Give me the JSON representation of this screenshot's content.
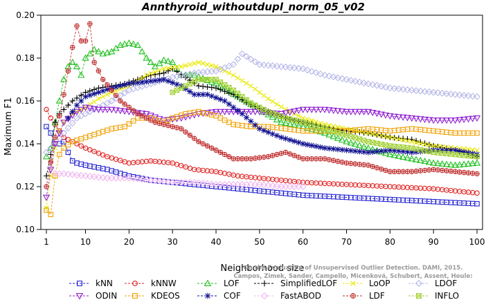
{
  "chart_data": {
    "type": "line",
    "title": "Annthyroid_withoutdupl_norm_05_v02",
    "xlabel": "Neighborhood size",
    "ylabel": "Maximum F1",
    "xlim": [
      1,
      100
    ],
    "ylim": [
      0.1,
      0.2
    ],
    "x_ticks": [
      1,
      10,
      20,
      30,
      40,
      50,
      60,
      70,
      80,
      90,
      100
    ],
    "y_ticks": [
      "0.10",
      "0.12",
      "0.14",
      "0.16",
      "0.18",
      "0.20"
    ],
    "grid": false,
    "legend_position": "bottom",
    "watermark": {
      "line1": "Campos, Zimek, Sander, Campello, Micenková, Schubert, Assent, Houle:",
      "line2": "On the Evaluation of Unsupervised Outlier Detection. DAMI, 2015."
    },
    "series": [
      {
        "name": "kNN",
        "color": "#2020d0",
        "marker": "square",
        "values": [
          [
            1,
            0.148
          ],
          [
            2,
            0.145
          ],
          [
            3,
            0.14
          ],
          [
            4,
            0.14
          ],
          [
            5,
            0.141
          ],
          [
            6,
            0.136
          ],
          [
            7,
            0.132
          ],
          [
            8,
            0.131
          ],
          [
            10,
            0.13
          ],
          [
            15,
            0.128
          ],
          [
            20,
            0.125
          ],
          [
            25,
            0.123
          ],
          [
            30,
            0.122
          ],
          [
            35,
            0.121
          ],
          [
            40,
            0.12
          ],
          [
            45,
            0.119
          ],
          [
            50,
            0.118
          ],
          [
            60,
            0.116
          ],
          [
            70,
            0.115
          ],
          [
            80,
            0.114
          ],
          [
            90,
            0.113
          ],
          [
            100,
            0.112
          ]
        ]
      },
      {
        "name": "kNNW",
        "color": "#e02020",
        "marker": "circle",
        "values": [
          [
            1,
            0.156
          ],
          [
            2,
            0.152
          ],
          [
            3,
            0.149
          ],
          [
            4,
            0.146
          ],
          [
            5,
            0.143
          ],
          [
            6,
            0.142
          ],
          [
            8,
            0.14
          ],
          [
            10,
            0.138
          ],
          [
            15,
            0.134
          ],
          [
            20,
            0.131
          ],
          [
            25,
            0.132
          ],
          [
            30,
            0.131
          ],
          [
            35,
            0.128
          ],
          [
            40,
            0.127
          ],
          [
            45,
            0.125
          ],
          [
            50,
            0.124
          ],
          [
            55,
            0.123
          ],
          [
            60,
            0.122
          ],
          [
            70,
            0.121
          ],
          [
            80,
            0.12
          ],
          [
            90,
            0.119
          ],
          [
            100,
            0.117
          ]
        ]
      },
      {
        "name": "LOF",
        "color": "#20c020",
        "marker": "triangle-up",
        "values": [
          [
            1,
            0.134
          ],
          [
            2,
            0.138
          ],
          [
            3,
            0.15
          ],
          [
            4,
            0.16
          ],
          [
            5,
            0.17
          ],
          [
            6,
            0.176
          ],
          [
            7,
            0.178
          ],
          [
            8,
            0.176
          ],
          [
            9,
            0.172
          ],
          [
            10,
            0.18
          ],
          [
            12,
            0.184
          ],
          [
            14,
            0.182
          ],
          [
            16,
            0.183
          ],
          [
            18,
            0.186
          ],
          [
            20,
            0.187
          ],
          [
            22,
            0.186
          ],
          [
            24,
            0.18
          ],
          [
            26,
            0.176
          ],
          [
            28,
            0.179
          ],
          [
            30,
            0.178
          ],
          [
            32,
            0.172
          ],
          [
            35,
            0.172
          ],
          [
            40,
            0.168
          ],
          [
            45,
            0.162
          ],
          [
            50,
            0.156
          ],
          [
            55,
            0.15
          ],
          [
            60,
            0.148
          ],
          [
            65,
            0.145
          ],
          [
            70,
            0.141
          ],
          [
            75,
            0.138
          ],
          [
            80,
            0.135
          ],
          [
            85,
            0.133
          ],
          [
            90,
            0.131
          ],
          [
            95,
            0.13
          ],
          [
            100,
            0.131
          ]
        ]
      },
      {
        "name": "SimplifiedLOF",
        "color": "#000000",
        "marker": "plus",
        "values": [
          [
            1,
            0.125
          ],
          [
            2,
            0.135
          ],
          [
            3,
            0.15
          ],
          [
            4,
            0.154
          ],
          [
            5,
            0.156
          ],
          [
            7,
            0.16
          ],
          [
            10,
            0.164
          ],
          [
            13,
            0.166
          ],
          [
            16,
            0.167
          ],
          [
            19,
            0.168
          ],
          [
            22,
            0.17
          ],
          [
            25,
            0.172
          ],
          [
            28,
            0.173
          ],
          [
            30,
            0.175
          ],
          [
            33,
            0.171
          ],
          [
            36,
            0.167
          ],
          [
            40,
            0.166
          ],
          [
            44,
            0.163
          ],
          [
            48,
            0.158
          ],
          [
            52,
            0.155
          ],
          [
            56,
            0.152
          ],
          [
            60,
            0.15
          ],
          [
            65,
            0.148
          ],
          [
            70,
            0.146
          ],
          [
            75,
            0.145
          ],
          [
            80,
            0.143
          ],
          [
            85,
            0.142
          ],
          [
            90,
            0.139
          ],
          [
            95,
            0.137
          ],
          [
            100,
            0.134
          ]
        ]
      },
      {
        "name": "LoOP",
        "color": "#e8e800",
        "marker": "cross",
        "values": [
          [
            1,
            0.11
          ],
          [
            2,
            0.125
          ],
          [
            3,
            0.138
          ],
          [
            4,
            0.146
          ],
          [
            5,
            0.15
          ],
          [
            7,
            0.154
          ],
          [
            10,
            0.157
          ],
          [
            13,
            0.161
          ],
          [
            16,
            0.164
          ],
          [
            20,
            0.167
          ],
          [
            24,
            0.172
          ],
          [
            28,
            0.175
          ],
          [
            32,
            0.176
          ],
          [
            36,
            0.178
          ],
          [
            40,
            0.176
          ],
          [
            44,
            0.172
          ],
          [
            48,
            0.167
          ],
          [
            52,
            0.161
          ],
          [
            56,
            0.156
          ],
          [
            60,
            0.152
          ],
          [
            65,
            0.149
          ],
          [
            70,
            0.147
          ],
          [
            75,
            0.145
          ],
          [
            80,
            0.143
          ],
          [
            85,
            0.141
          ],
          [
            90,
            0.139
          ],
          [
            95,
            0.138
          ],
          [
            100,
            0.137
          ]
        ]
      },
      {
        "name": "LDOF",
        "color": "#b8b8e8",
        "marker": "diamond",
        "values": [
          [
            1,
            0.136
          ],
          [
            3,
            0.14
          ],
          [
            5,
            0.145
          ],
          [
            8,
            0.152
          ],
          [
            12,
            0.156
          ],
          [
            16,
            0.16
          ],
          [
            20,
            0.165
          ],
          [
            25,
            0.168
          ],
          [
            30,
            0.171
          ],
          [
            35,
            0.173
          ],
          [
            40,
            0.174
          ],
          [
            44,
            0.177
          ],
          [
            46,
            0.182
          ],
          [
            50,
            0.177
          ],
          [
            55,
            0.176
          ],
          [
            60,
            0.175
          ],
          [
            65,
            0.172
          ],
          [
            70,
            0.17
          ],
          [
            75,
            0.168
          ],
          [
            80,
            0.166
          ],
          [
            85,
            0.165
          ],
          [
            90,
            0.164
          ],
          [
            95,
            0.163
          ],
          [
            100,
            0.162
          ]
        ]
      },
      {
        "name": "ODIN",
        "color": "#9020d0",
        "marker": "triangle-down",
        "values": [
          [
            1,
            0.115
          ],
          [
            2,
            0.128
          ],
          [
            3,
            0.14
          ],
          [
            5,
            0.15
          ],
          [
            8,
            0.155
          ],
          [
            10,
            0.157
          ],
          [
            13,
            0.156
          ],
          [
            16,
            0.156
          ],
          [
            20,
            0.155
          ],
          [
            24,
            0.154
          ],
          [
            28,
            0.151
          ],
          [
            32,
            0.152
          ],
          [
            36,
            0.154
          ],
          [
            40,
            0.155
          ],
          [
            45,
            0.155
          ],
          [
            50,
            0.155
          ],
          [
            55,
            0.154
          ],
          [
            60,
            0.156
          ],
          [
            65,
            0.156
          ],
          [
            70,
            0.155
          ],
          [
            75,
            0.155
          ],
          [
            80,
            0.153
          ],
          [
            85,
            0.152
          ],
          [
            90,
            0.151
          ],
          [
            95,
            0.151
          ],
          [
            100,
            0.152
          ]
        ]
      },
      {
        "name": "KDEOS",
        "color": "#f0a000",
        "marker": "square",
        "values": [
          [
            1,
            0.109
          ],
          [
            2,
            0.107
          ],
          [
            3,
            0.125
          ],
          [
            4,
            0.135
          ],
          [
            5,
            0.138
          ],
          [
            7,
            0.141
          ],
          [
            10,
            0.143
          ],
          [
            13,
            0.145
          ],
          [
            16,
            0.147
          ],
          [
            19,
            0.148
          ],
          [
            22,
            0.152
          ],
          [
            25,
            0.152
          ],
          [
            28,
            0.15
          ],
          [
            30,
            0.152
          ],
          [
            33,
            0.154
          ],
          [
            36,
            0.155
          ],
          [
            40,
            0.153
          ],
          [
            44,
            0.149
          ],
          [
            48,
            0.148
          ],
          [
            52,
            0.148
          ],
          [
            56,
            0.147
          ],
          [
            60,
            0.146
          ],
          [
            65,
            0.146
          ],
          [
            70,
            0.146
          ],
          [
            75,
            0.147
          ],
          [
            80,
            0.146
          ],
          [
            85,
            0.147
          ],
          [
            90,
            0.146
          ],
          [
            95,
            0.145
          ],
          [
            100,
            0.145
          ]
        ]
      },
      {
        "name": "COF",
        "color": "#101090",
        "marker": "asterisk",
        "values": [
          [
            6,
            0.152
          ],
          [
            8,
            0.158
          ],
          [
            10,
            0.162
          ],
          [
            13,
            0.164
          ],
          [
            16,
            0.166
          ],
          [
            20,
            0.168
          ],
          [
            24,
            0.169
          ],
          [
            28,
            0.17
          ],
          [
            32,
            0.167
          ],
          [
            35,
            0.163
          ],
          [
            38,
            0.163
          ],
          [
            42,
            0.16
          ],
          [
            46,
            0.154
          ],
          [
            50,
            0.147
          ],
          [
            55,
            0.143
          ],
          [
            60,
            0.14
          ],
          [
            65,
            0.138
          ],
          [
            70,
            0.137
          ],
          [
            75,
            0.136
          ],
          [
            80,
            0.137
          ],
          [
            85,
            0.136
          ],
          [
            90,
            0.137
          ],
          [
            95,
            0.137
          ],
          [
            100,
            0.135
          ]
        ]
      },
      {
        "name": "FastABOD",
        "color": "#f0b8f0",
        "marker": "diamond",
        "values": [
          [
            3,
            0.126
          ],
          [
            5,
            0.126
          ],
          [
            10,
            0.125
          ],
          [
            15,
            0.124
          ],
          [
            20,
            0.124
          ],
          [
            25,
            0.123
          ],
          [
            30,
            0.122
          ],
          [
            35,
            0.122
          ],
          [
            40,
            0.121
          ],
          [
            45,
            0.121
          ],
          [
            50,
            0.121
          ],
          [
            55,
            0.12
          ],
          [
            60,
            0.12
          ]
        ]
      },
      {
        "name": "LDF",
        "color": "#c03030",
        "marker": "circle-plus",
        "values": [
          [
            1,
            0.12
          ],
          [
            3,
            0.143
          ],
          [
            5,
            0.163
          ],
          [
            7,
            0.185
          ],
          [
            8,
            0.195
          ],
          [
            9,
            0.188
          ],
          [
            10,
            0.188
          ],
          [
            11,
            0.196
          ],
          [
            12,
            0.178
          ],
          [
            14,
            0.17
          ],
          [
            18,
            0.16
          ],
          [
            22,
            0.154
          ],
          [
            26,
            0.15
          ],
          [
            30,
            0.148
          ],
          [
            32,
            0.147
          ],
          [
            36,
            0.141
          ],
          [
            40,
            0.137
          ],
          [
            44,
            0.133
          ],
          [
            48,
            0.133
          ],
          [
            52,
            0.134
          ],
          [
            56,
            0.136
          ],
          [
            60,
            0.133
          ],
          [
            65,
            0.133
          ],
          [
            70,
            0.131
          ],
          [
            75,
            0.13
          ],
          [
            80,
            0.127
          ],
          [
            85,
            0.127
          ],
          [
            90,
            0.128
          ],
          [
            95,
            0.127
          ],
          [
            100,
            0.126
          ]
        ]
      },
      {
        "name": "INFLO",
        "color": "#a0d030",
        "marker": "square-x",
        "values": [
          [
            30,
            0.164
          ],
          [
            33,
            0.167
          ],
          [
            36,
            0.17
          ],
          [
            40,
            0.17
          ],
          [
            44,
            0.165
          ],
          [
            48,
            0.159
          ],
          [
            52,
            0.155
          ],
          [
            56,
            0.152
          ],
          [
            60,
            0.15
          ],
          [
            65,
            0.147
          ],
          [
            70,
            0.144
          ],
          [
            75,
            0.141
          ],
          [
            80,
            0.139
          ],
          [
            85,
            0.138
          ],
          [
            90,
            0.136
          ],
          [
            95,
            0.135
          ],
          [
            100,
            0.134
          ]
        ]
      }
    ]
  }
}
